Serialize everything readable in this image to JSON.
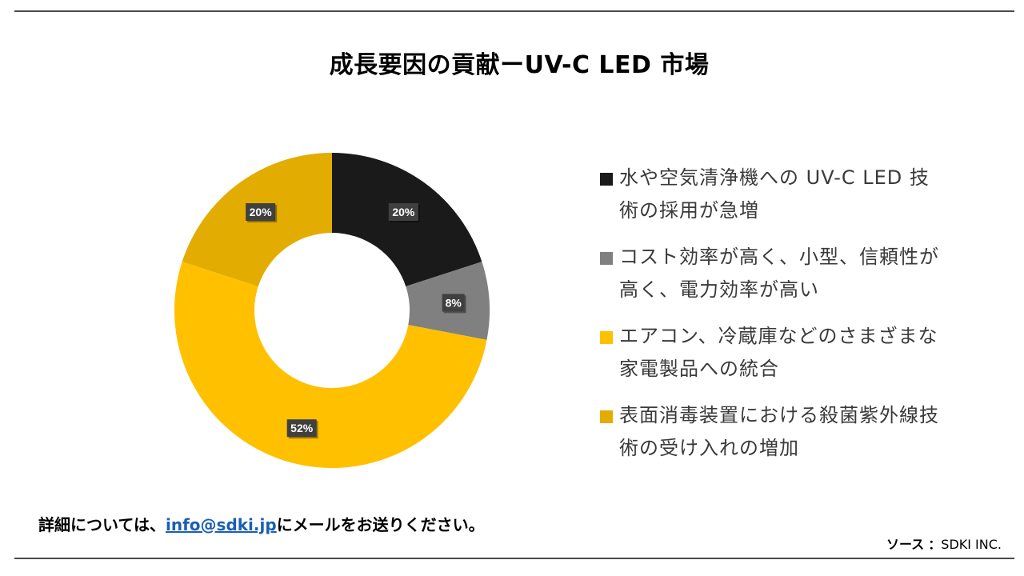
{
  "title": "成長要因の貢献ーUV-C LED 市場",
  "chart_data": {
    "type": "pie",
    "donut": true,
    "categories": [
      "水や空気清浄機へのUV-C LED 技術の採用が急増",
      "コスト効率が高く、小型、信頼性が高く、電力効率が高い",
      "エアコン、冷蔵庫などのさまざまな家電製品への統合",
      "表面消毒装置における殺菌紫外線技術の受け入れの増加"
    ],
    "values": [
      20,
      8,
      52,
      20
    ],
    "data_labels": [
      "20%",
      "8%",
      "52%",
      "20%"
    ],
    "colors": [
      "#1a1a1a",
      "#808080",
      "#ffc000",
      "#e2ac00"
    ],
    "legend_position": "right"
  },
  "legend": [
    {
      "line1": "水や空気清浄機への UV-C LED 技",
      "line2": "術の採用が急増",
      "color": "#1a1a1a"
    },
    {
      "line1": "コスト効率が高く、小型、信頼性が",
      "line2": "高く、電力効率が高い",
      "color": "#808080"
    },
    {
      "line1": "エアコン、冷蔵庫などのさまざまな",
      "line2": "家電製品への統合",
      "color": "#ffc000"
    },
    {
      "line1": "表面消毒装置における殺菌紫外線技",
      "line2": "術の受け入れの増加",
      "color": "#e2ac00"
    }
  ],
  "footer": {
    "prefix": "詳細については、",
    "email": "info@sdki.jp",
    "suffix": "にメールをお送りください。"
  },
  "source": {
    "label": "ソース",
    "colon": "：",
    "value": "SDKI INC."
  }
}
